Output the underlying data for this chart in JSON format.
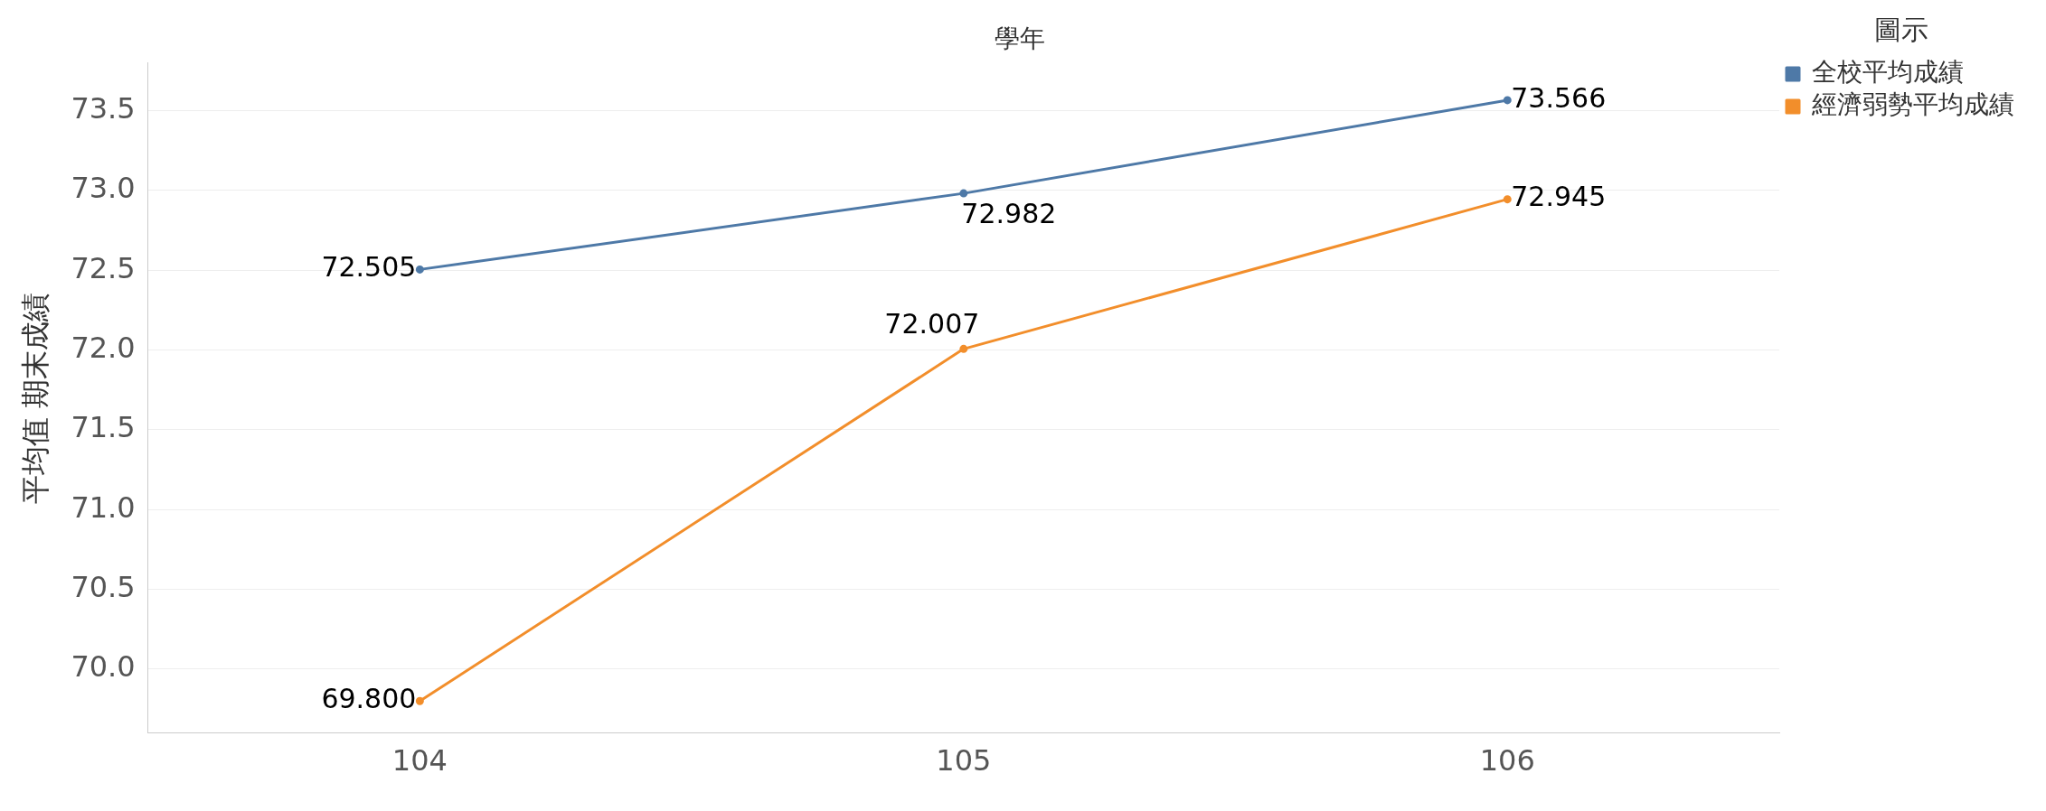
{
  "chart_data": {
    "type": "line",
    "xlabel": "學年",
    "ylabel": "平均值 期末成績",
    "legend_title": "圖示",
    "categories": [
      "104",
      "105",
      "106"
    ],
    "series": [
      {
        "name": "全校平均成績",
        "color": "#4e79a7",
        "values": [
          72.505,
          72.982,
          73.566
        ],
        "value_labels": [
          "72.505",
          "72.982",
          "73.566"
        ]
      },
      {
        "name": "經濟弱勢平均成績",
        "color": "#f28e2b",
        "values": [
          69.8,
          72.007,
          72.945
        ],
        "value_labels": [
          "69.800",
          "72.007",
          "72.945"
        ]
      }
    ],
    "ylim": [
      69.6,
      73.8
    ],
    "yticks": [
      {
        "value": 70,
        "label": "70.0"
      },
      {
        "value": 70.5,
        "label": "70.5"
      },
      {
        "value": 71,
        "label": "71.0"
      },
      {
        "value": 71.5,
        "label": "71.5"
      },
      {
        "value": 72,
        "label": "72.0"
      },
      {
        "value": 72.5,
        "label": "72.5"
      },
      {
        "value": 73,
        "label": "73.0"
      },
      {
        "value": 73.5,
        "label": "73.5"
      }
    ],
    "grid": "y",
    "legend": "top right",
    "marker": "circle",
    "line_style": "solid"
  }
}
